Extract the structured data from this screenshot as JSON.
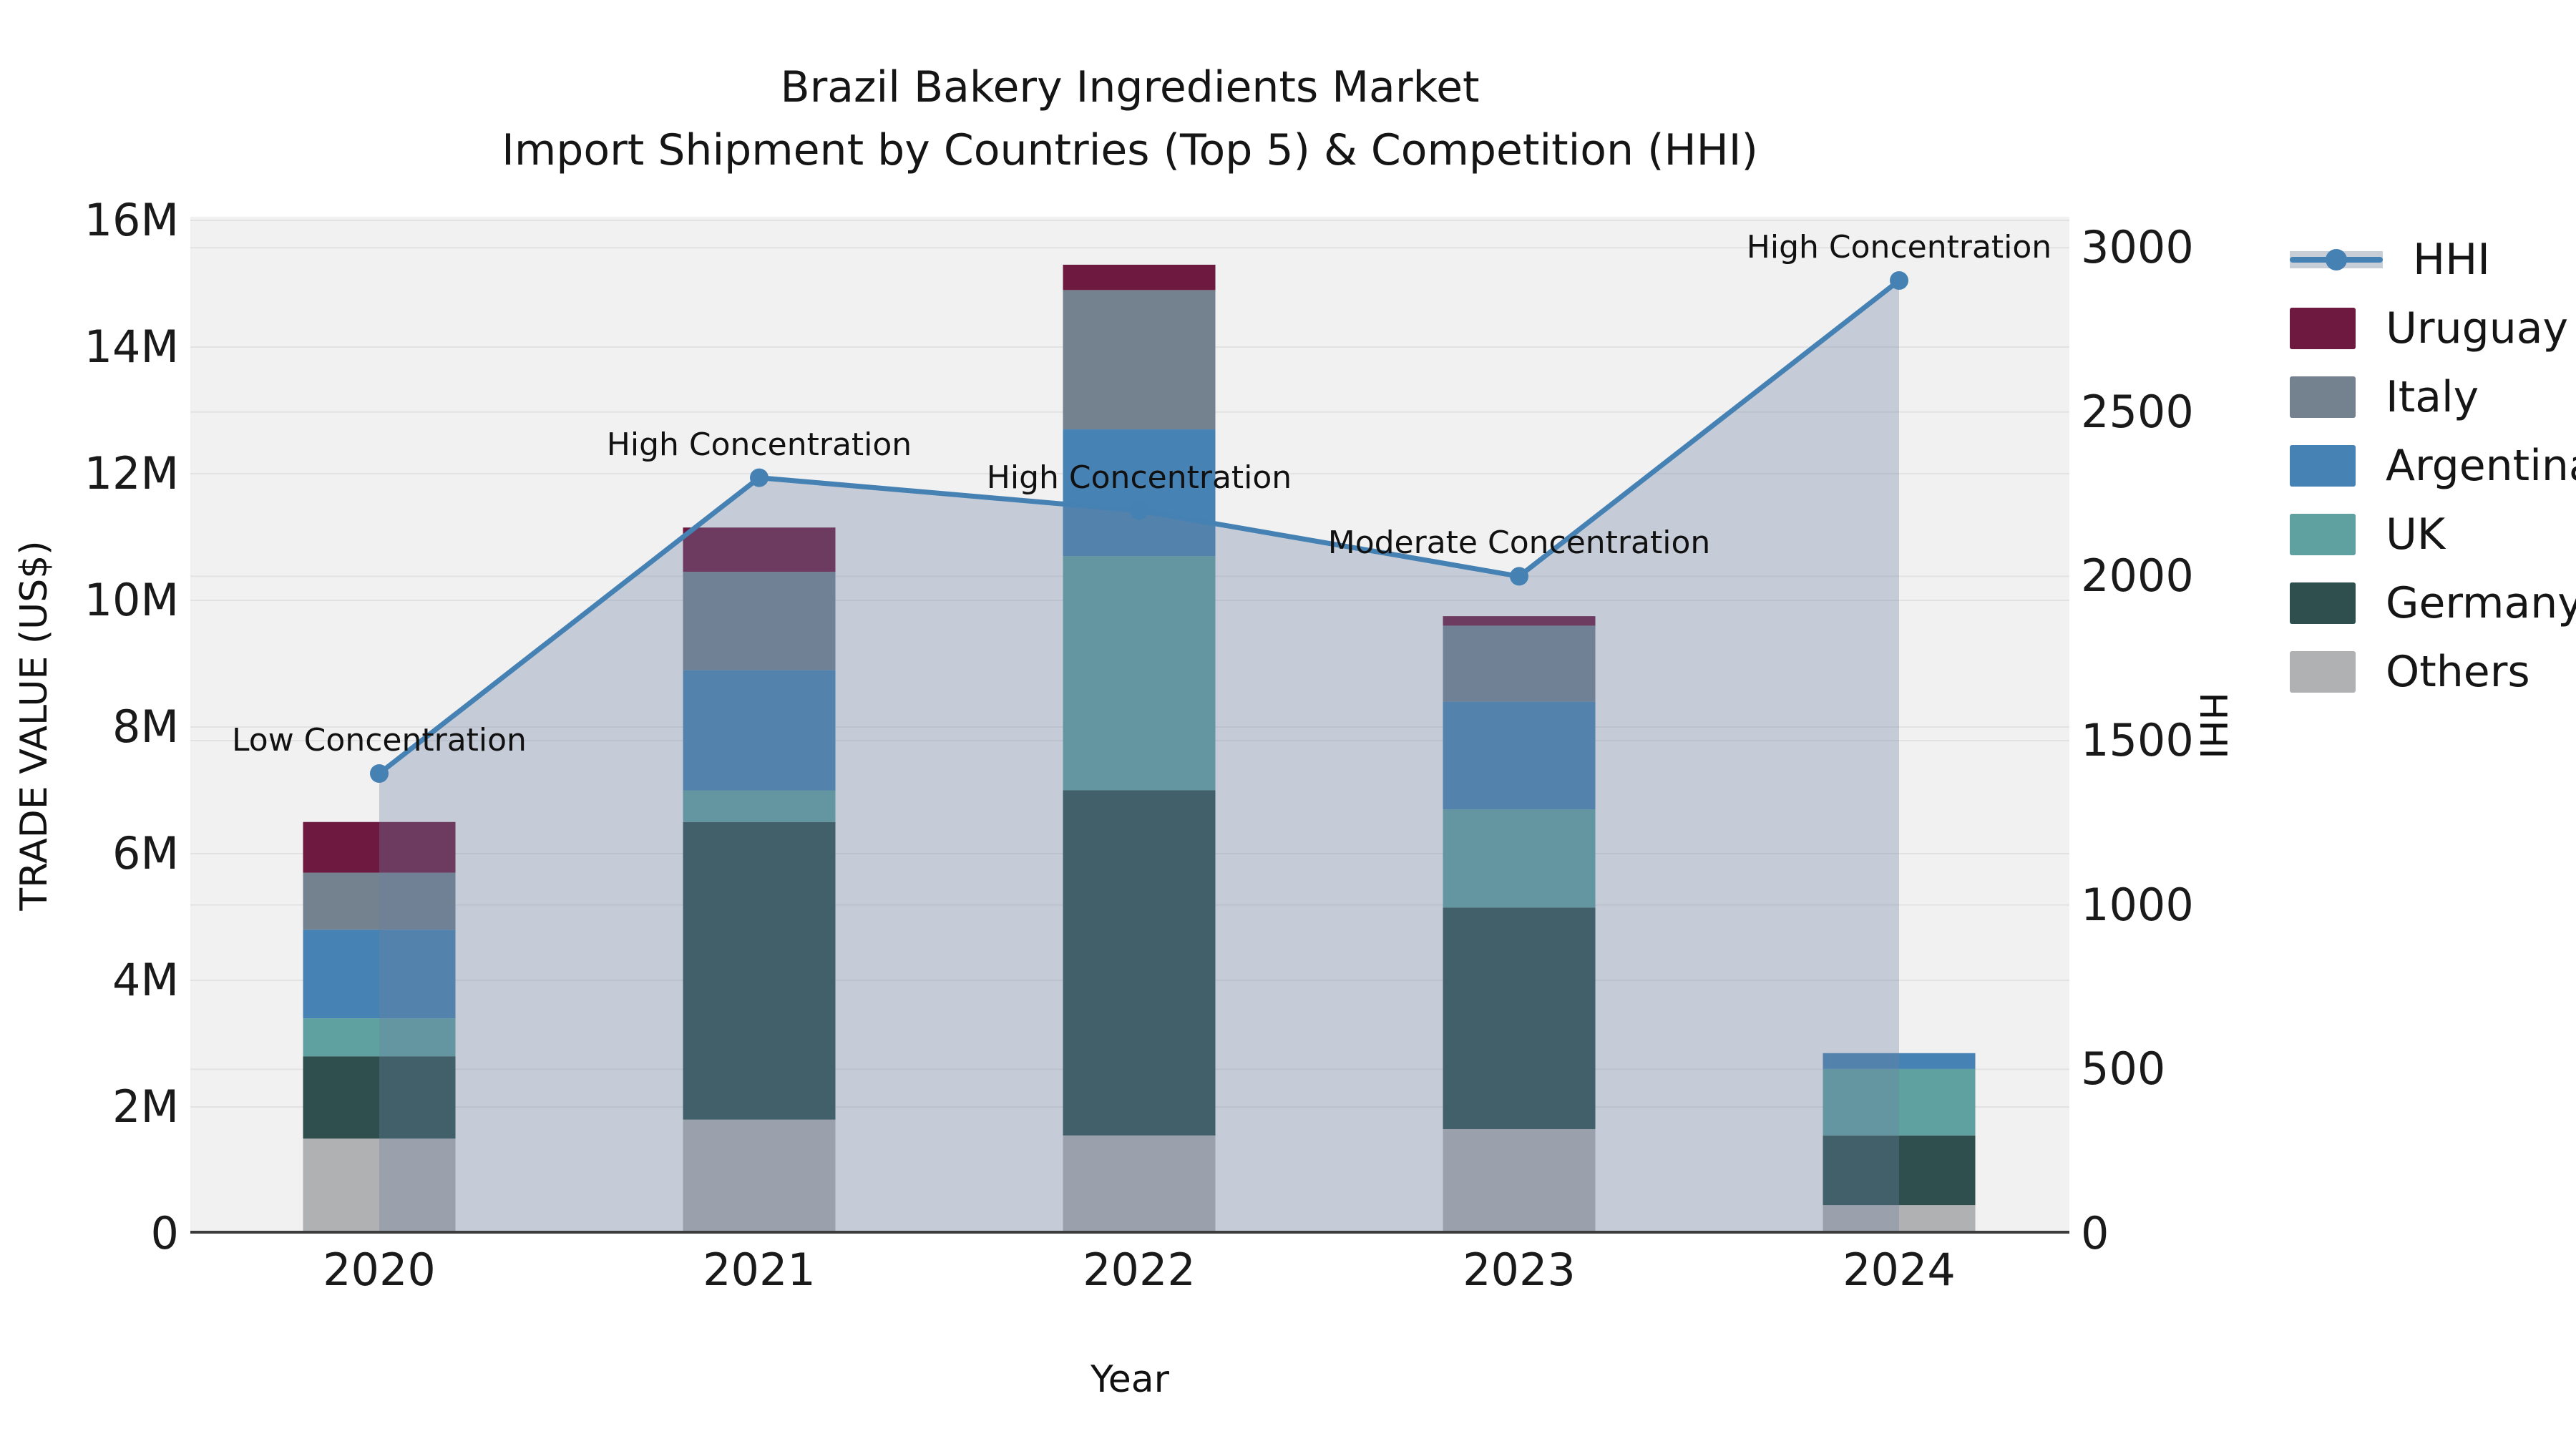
{
  "title": {
    "line1": "Brazil Bakery Ingredients Market",
    "line2": "Import Shipment by Countries (Top 5) & Competition (HHI)"
  },
  "axes": {
    "x_label": "Year",
    "y_left_label": "TRADE VALUE (US$)",
    "y_right_label": "HHI",
    "y_left_ticks": [
      {
        "label": "0",
        "value_millions": 0
      },
      {
        "label": "2M",
        "value_millions": 2
      },
      {
        "label": "4M",
        "value_millions": 4
      },
      {
        "label": "6M",
        "value_millions": 6
      },
      {
        "label": "8M",
        "value_millions": 8
      },
      {
        "label": "10M",
        "value_millions": 10
      },
      {
        "label": "12M",
        "value_millions": 12
      },
      {
        "label": "14M",
        "value_millions": 14
      },
      {
        "label": "16M",
        "value_millions": 16
      }
    ],
    "y_right_ticks": [
      {
        "label": "0",
        "value": 0
      },
      {
        "label": "500",
        "value": 500
      },
      {
        "label": "1000",
        "value": 1000
      },
      {
        "label": "1500",
        "value": 1500
      },
      {
        "label": "2000",
        "value": 2000
      },
      {
        "label": "2500",
        "value": 2500
      },
      {
        "label": "3000",
        "value": 3000
      }
    ]
  },
  "colors": {
    "plot_background": "#f1f1f2",
    "gridline": "#e2e2e4",
    "axis_baseline": "#3c3c3c",
    "hhi_line": "#4681b4",
    "hhi_area_fill": "rgba(110,132,160,0.33)",
    "Uruguay": "#6d1940",
    "Italy": "#74818f",
    "Argentina": "#4682b4",
    "UK": "#5fa0a1",
    "Germany": "#2e4f4e",
    "Others": "#b0b1b3"
  },
  "legend": {
    "items": [
      {
        "label": "HHI",
        "type": "line"
      },
      {
        "label": "Uruguay",
        "type": "patch",
        "color_key": "Uruguay"
      },
      {
        "label": "Italy",
        "type": "patch",
        "color_key": "Italy"
      },
      {
        "label": "Argentina",
        "type": "patch",
        "color_key": "Argentina"
      },
      {
        "label": "UK",
        "type": "patch",
        "color_key": "UK"
      },
      {
        "label": "Germany",
        "type": "patch",
        "color_key": "Germany"
      },
      {
        "label": "Others",
        "type": "patch",
        "color_key": "Others"
      }
    ]
  },
  "chart_data": {
    "type": "bar",
    "subtype": "stacked-bars-with-line-overlay",
    "title": "Brazil Bakery Ingredients Market — Import Shipment by Countries (Top 5) & Competition (HHI)",
    "xlabel": "Year",
    "ylabel_left": "TRADE VALUE (US$)",
    "ylabel_right": "HHI",
    "categories": [
      "2020",
      "2021",
      "2022",
      "2023",
      "2024"
    ],
    "bar_unit": "millions US$",
    "ylim_left_millions": [
      0,
      16
    ],
    "ylim_right": [
      0,
      3095
    ],
    "grid": true,
    "legend_position": "right",
    "series": [
      {
        "name": "Others",
        "stack_order": 1,
        "values_millions": [
          1.5,
          1.8,
          1.55,
          1.65,
          0.45
        ]
      },
      {
        "name": "Germany",
        "stack_order": 2,
        "values_millions": [
          1.3,
          4.7,
          5.45,
          3.5,
          1.1
        ]
      },
      {
        "name": "UK",
        "stack_order": 3,
        "values_millions": [
          0.6,
          0.5,
          3.7,
          1.55,
          1.05
        ]
      },
      {
        "name": "Argentina",
        "stack_order": 4,
        "values_millions": [
          1.4,
          1.9,
          2.0,
          1.7,
          0.25
        ]
      },
      {
        "name": "Italy",
        "stack_order": 5,
        "values_millions": [
          0.9,
          1.55,
          2.2,
          1.2,
          0
        ]
      },
      {
        "name": "Uruguay",
        "stack_order": 6,
        "values_millions": [
          0.8,
          0.7,
          0.4,
          0.15,
          0
        ]
      }
    ],
    "bar_totals_millions": [
      6.5,
      11.15,
      15.3,
      9.75,
      2.85
    ],
    "line_series": {
      "name": "HHI",
      "axis": "right",
      "values": [
        1400,
        2300,
        2200,
        2000,
        2900
      ],
      "has_markers": true,
      "has_area_fill": true
    },
    "annotations": [
      {
        "category": "2020",
        "label": "Low Concentration"
      },
      {
        "category": "2021",
        "label": "High Concentration"
      },
      {
        "category": "2022",
        "label": "High Concentration"
      },
      {
        "category": "2023",
        "label": "Moderate Concentration"
      },
      {
        "category": "2024",
        "label": "High Concentration"
      }
    ]
  }
}
